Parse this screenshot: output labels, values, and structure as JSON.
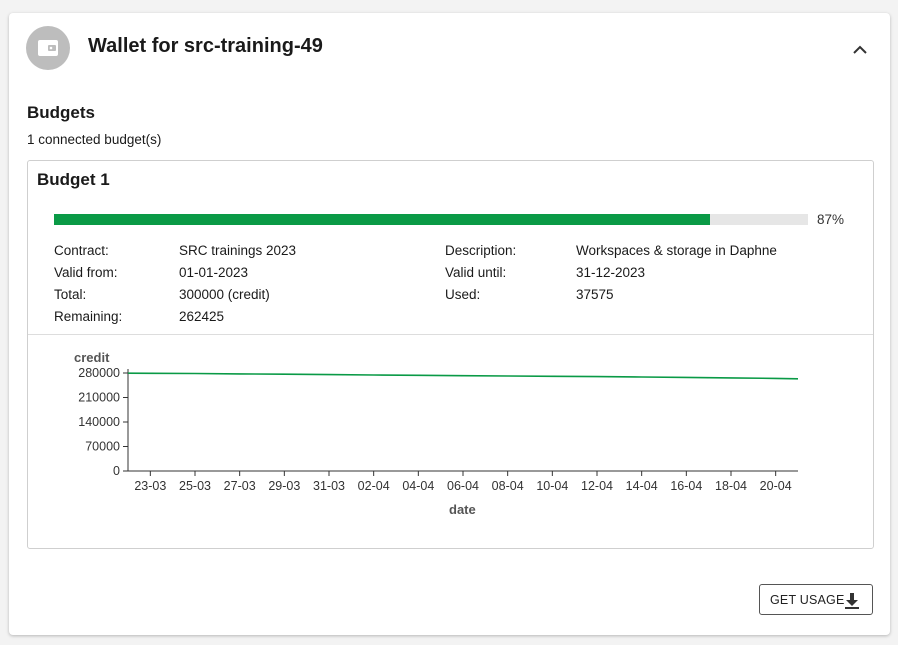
{
  "wallet": {
    "title": "Wallet for src-training-49"
  },
  "budgets": {
    "section_title": "Budgets",
    "connected_text": "1 connected budget(s)",
    "items": [
      {
        "title": "Budget 1",
        "progress_fraction": 0.87,
        "progress_text": "87%",
        "progress_color": "#0a9a46",
        "fields": {
          "contract_label": "Contract:",
          "contract_value": "SRC trainings 2023",
          "valid_from_label": "Valid from:",
          "valid_from_value": "01-01-2023",
          "total_label": "Total:",
          "total_value": "300000 (credit)",
          "remaining_label": "Remaining:",
          "remaining_value": "262425",
          "description_label": "Description:",
          "description_value": "Workspaces & storage in Daphne",
          "valid_until_label": "Valid until:",
          "valid_until_value": "31-12-2023",
          "used_label": "Used:",
          "used_value": "37575"
        }
      }
    ]
  },
  "chart_data": {
    "type": "line",
    "ylabel": "credit",
    "xlabel": "date",
    "ylim": [
      0,
      280000
    ],
    "yticks": [
      "0",
      "70000",
      "140000",
      "210000",
      "280000"
    ],
    "xticks": [
      "23-03",
      "25-03",
      "27-03",
      "29-03",
      "31-03",
      "02-04",
      "04-04",
      "06-04",
      "08-04",
      "10-04",
      "12-04",
      "14-04",
      "16-04",
      "18-04",
      "20-04"
    ],
    "x": [
      "22-03",
      "23-03",
      "25-03",
      "27-03",
      "29-03",
      "31-03",
      "02-04",
      "04-04",
      "06-04",
      "08-04",
      "10-04",
      "12-04",
      "14-04",
      "16-04",
      "18-04",
      "20-04",
      "21-04"
    ],
    "values": [
      279500,
      279200,
      278500,
      277500,
      276500,
      275300,
      274300,
      273300,
      272400,
      271500,
      270500,
      269600,
      268700,
      267500,
      266000,
      264500,
      263500
    ],
    "line_color": "#0a9a46",
    "grid": false
  },
  "actions": {
    "get_usage_label": "GET USAGE"
  },
  "icons": {
    "wallet": "wallet-icon",
    "collapse": "chevron-up-icon",
    "download": "download-icon"
  }
}
